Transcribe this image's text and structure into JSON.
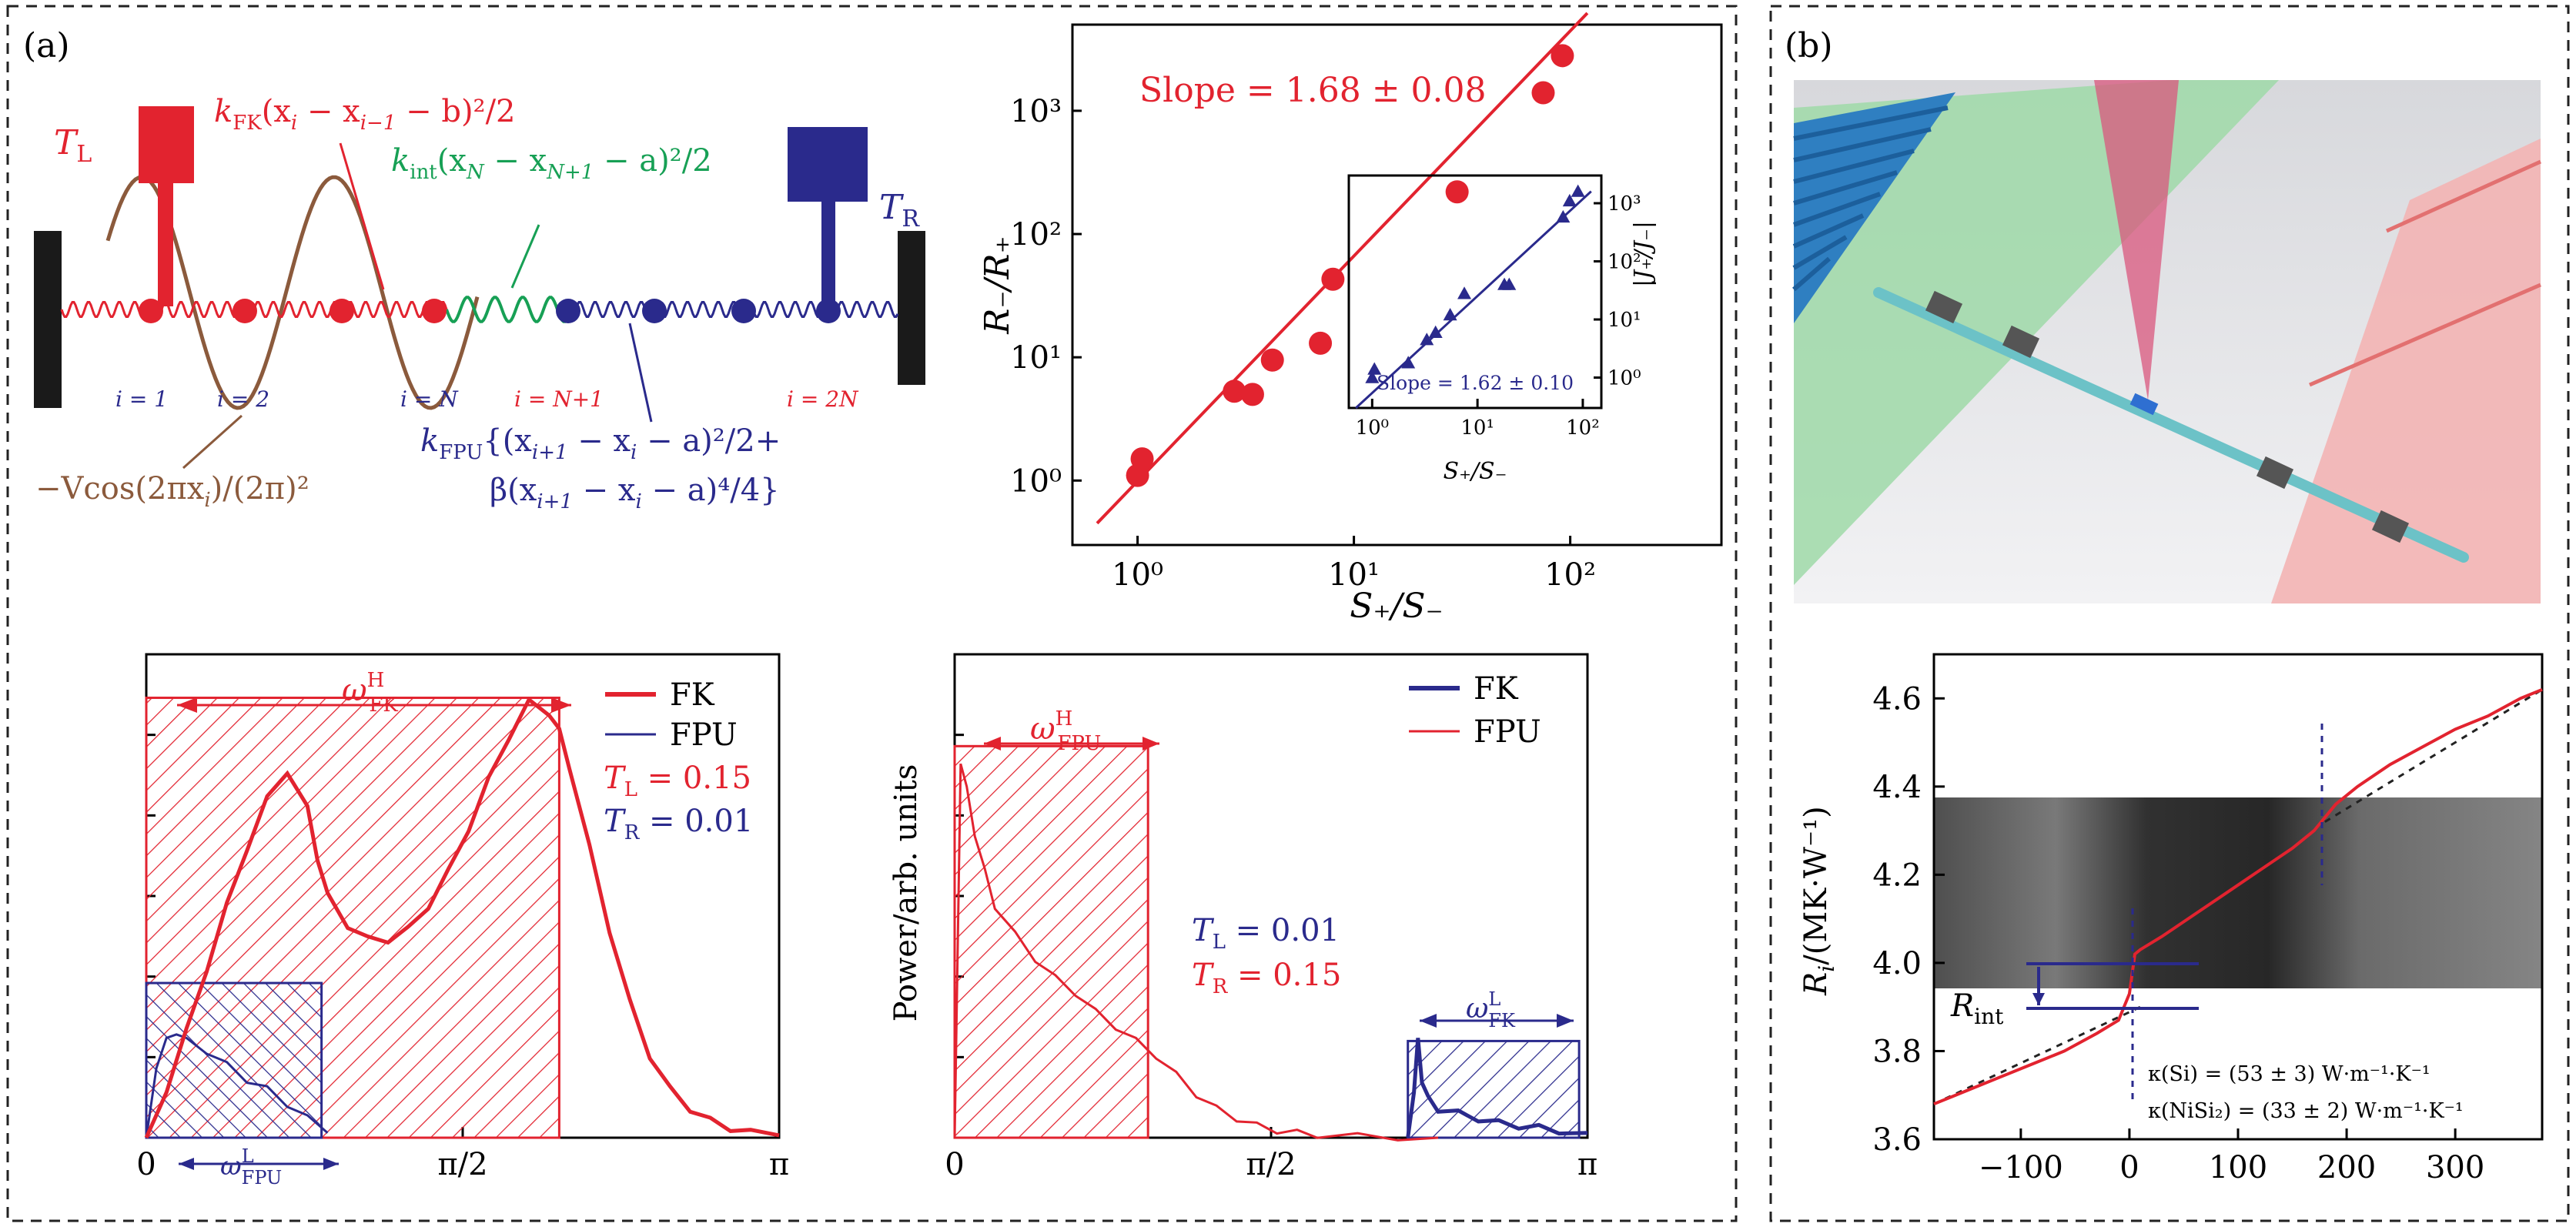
{
  "panels": {
    "a_label": "(a)",
    "b_label": "(b)"
  },
  "schematic": {
    "TL": "T",
    "TL_sub": "L",
    "TR": "T",
    "TR_sub": "R",
    "kFK": "k",
    "kFK_sub": "FK",
    "kFK_expr": "(x",
    "kFK_i": "i",
    "kFK_mid": " − x",
    "kFK_i1": "i−1",
    "kFK_tail": " − b)²/2",
    "kint": "k",
    "kint_sub": "int",
    "kint_expr": "(x",
    "kint_N": "N",
    "kint_mid": " − x",
    "kint_N1": "N+1",
    "kint_tail": " − a)²/2",
    "kFPU": "k",
    "kFPU_sub": "FPU",
    "kFPU_line1": "{(x",
    "kFPU_l1a": "i+1",
    "kFPU_l1b": " − x",
    "kFPU_l1c": "i",
    "kFPU_l1d": " − a)²/2+",
    "kFPU_line2": "β(x",
    "kFPU_l2a": "i+1",
    "kFPU_l2b": " − x",
    "kFPU_l2c": "i",
    "kFPU_l2d": " − a)⁴/4}",
    "potential": "−Vcos(2πx",
    "potential_i": "i",
    "potential_tail": ")/(2π)²",
    "site_labels": [
      "i = 1",
      "i = 2",
      "i = N",
      "i = N+1",
      "i = 2N"
    ]
  },
  "chart_data": [
    {
      "type": "scatter",
      "id": "rectification-main",
      "xlabel": "S₊/S₋",
      "ylabel": "R₋/R₊",
      "xscale": "log",
      "yscale": "log",
      "xlim": [
        0.5,
        500
      ],
      "ylim": [
        0.3,
        5000
      ],
      "xticks": [
        "10⁰",
        "10¹",
        "10²"
      ],
      "yticks": [
        "10⁰",
        "10¹",
        "10²",
        "10³"
      ],
      "annotation": "Slope = 1.68 ± 0.08",
      "points": {
        "x": [
          1.0,
          1.05,
          2.8,
          3.4,
          4.2,
          7.0,
          8.0,
          30,
          75,
          92
        ],
        "y": [
          1.1,
          1.5,
          5.3,
          5.0,
          9.5,
          13,
          43,
          220,
          1400,
          2800
        ]
      },
      "fit": {
        "x": [
          0.65,
          120
        ],
        "y": [
          0.45,
          6200
        ]
      },
      "color": "#e2232f"
    },
    {
      "type": "scatter",
      "id": "rectification-inset",
      "xlabel": "S₊/S₋",
      "ylabel": "|J₊/J₋|",
      "xscale": "log",
      "yscale": "log",
      "xlim": [
        0.6,
        150
      ],
      "ylim": [
        0.3,
        3000
      ],
      "xticks": [
        "10⁰",
        "10¹",
        "10²"
      ],
      "yticks": [
        "10⁰",
        "10¹",
        "10²",
        "10³"
      ],
      "annotation": "Slope = 1.62 ± 0.10",
      "points": {
        "x": [
          1.0,
          1.05,
          2.2,
          3.3,
          4.0,
          5.5,
          7.5,
          18,
          20,
          65,
          75,
          90
        ],
        "y": [
          1.0,
          1.4,
          1.8,
          4.5,
          6.0,
          12,
          28,
          40,
          40,
          580,
          1100,
          1600
        ]
      },
      "fit": {
        "x": [
          0.7,
          120
        ],
        "y": [
          0.3,
          1600
        ]
      },
      "color": "#2a2a8c"
    },
    {
      "type": "area",
      "id": "power-spectrum-1",
      "xticks": [
        "0",
        "π/2",
        "π"
      ],
      "legend": [
        "FK",
        "FPU"
      ],
      "band_high": "ω",
      "band_high_sup": "H",
      "band_high_sub": "FK",
      "band_low": "ω",
      "band_low_sup": "L",
      "band_low_sub": "FPU",
      "temp1": "T",
      "temp1_sub": "L",
      "temp1_val": " = 0.15",
      "temp2": "T",
      "temp2_sub": "R",
      "temp2_val": " = 0.01",
      "xlim": [
        0,
        3.1416
      ],
      "ylim": [
        0,
        1.0
      ],
      "series": [
        {
          "name": "FK",
          "color": "#e2232f",
          "x": [
            0,
            0.1,
            0.2,
            0.3,
            0.4,
            0.5,
            0.6,
            0.7,
            0.8,
            0.85,
            0.9,
            1.0,
            1.1,
            1.2,
            1.3,
            1.4,
            1.5,
            1.6,
            1.7,
            1.8,
            1.9,
            2.0,
            2.05,
            2.1,
            2.2,
            2.3,
            2.4,
            2.5,
            2.6,
            2.7,
            2.8,
            2.9,
            3.0,
            3.1416
          ],
          "y": [
            0,
            0.1,
            0.22,
            0.35,
            0.48,
            0.6,
            0.7,
            0.76,
            0.68,
            0.58,
            0.5,
            0.44,
            0.41,
            0.41,
            0.43,
            0.48,
            0.55,
            0.64,
            0.74,
            0.83,
            0.9,
            0.88,
            0.84,
            0.77,
            0.6,
            0.43,
            0.28,
            0.17,
            0.1,
            0.06,
            0.035,
            0.02,
            0.01,
            0.005
          ]
        },
        {
          "name": "FPU",
          "color": "#2a2a8c",
          "x": [
            0,
            0.05,
            0.1,
            0.15,
            0.2,
            0.3,
            0.4,
            0.5,
            0.6,
            0.7,
            0.8,
            0.9
          ],
          "y": [
            0,
            0.15,
            0.2,
            0.22,
            0.2,
            0.18,
            0.15,
            0.12,
            0.1,
            0.07,
            0.04,
            0.01
          ]
        }
      ],
      "bands": [
        {
          "color": "#e2232f",
          "x": [
            0,
            2.05
          ],
          "y": [
            0,
            0.91
          ]
        },
        {
          "color": "#2a2a8c",
          "x": [
            0,
            0.87
          ],
          "y": [
            0,
            0.32
          ]
        }
      ]
    },
    {
      "type": "area",
      "id": "power-spectrum-2",
      "xticks": [
        "0",
        "π/2",
        "π"
      ],
      "ylabel": "Power/arb. units",
      "legend": [
        "FK",
        "FPU"
      ],
      "band_high": "ω",
      "band_high_sup": "H",
      "band_high_sub": "FPU",
      "band_low": "ω",
      "band_low_sup": "L",
      "band_low_sub": "FK",
      "temp1": "T",
      "temp1_sub": "L",
      "temp1_val": " = 0.01",
      "temp2": "T",
      "temp2_sub": "R",
      "temp2_val": " = 0.15",
      "xlim": [
        0,
        3.1416
      ],
      "ylim": [
        0,
        1.0
      ],
      "series": [
        {
          "name": "FPU",
          "color": "#e2232f",
          "x": [
            0,
            0.03,
            0.06,
            0.1,
            0.15,
            0.2,
            0.3,
            0.4,
            0.5,
            0.6,
            0.7,
            0.8,
            0.9,
            1.0,
            1.1,
            1.2,
            1.3,
            1.4,
            1.5,
            1.6,
            1.7,
            1.8,
            2.0,
            2.2,
            2.4
          ],
          "y": [
            0,
            0.78,
            0.72,
            0.63,
            0.55,
            0.48,
            0.42,
            0.37,
            0.33,
            0.3,
            0.26,
            0.23,
            0.2,
            0.17,
            0.13,
            0.09,
            0.06,
            0.04,
            0.025,
            0.015,
            0.01,
            0.006,
            0.003,
            0.001,
            0
          ]
        },
        {
          "name": "FK",
          "color": "#2a2a8c",
          "x": [
            2.25,
            2.28,
            2.3,
            2.32,
            2.35,
            2.4,
            2.5,
            2.6,
            2.7,
            2.8,
            2.9,
            3.0,
            3.1416
          ],
          "y": [
            0,
            0.1,
            0.2,
            0.12,
            0.08,
            0.06,
            0.05,
            0.04,
            0.03,
            0.025,
            0.02,
            0.015,
            0.01
          ]
        }
      ],
      "bands": [
        {
          "color": "#e2232f",
          "x": [
            0,
            0.96
          ],
          "y": [
            0,
            0.81
          ]
        },
        {
          "color": "#2a2a8c",
          "x": [
            2.25,
            3.1
          ],
          "y": [
            0,
            0.2
          ]
        }
      ]
    },
    {
      "type": "line",
      "id": "resistance-profile",
      "ylabel": "R",
      "ylabel_sub": "i",
      "ylabel_unit": "/(MK·W⁻¹)",
      "xticks": [
        "−100",
        "0",
        "100",
        "200",
        "300"
      ],
      "xtick_values": [
        -100,
        0,
        100,
        200,
        300
      ],
      "yticks": [
        "3.6",
        "3.8",
        "4.0",
        "4.2",
        "4.4",
        "4.6"
      ],
      "ytick_values": [
        3.6,
        3.8,
        4.0,
        4.2,
        4.4,
        4.6
      ],
      "xlim": [
        -180,
        380
      ],
      "ylim": [
        3.6,
        4.7
      ],
      "annotation": "R",
      "annotation_sub": "int",
      "legend_text1": "κ(Si) = (53 ± 3) W·m⁻¹·K⁻¹",
      "legend_text2": "κ(NiSi₂) = (33 ± 2) W·m⁻¹·K⁻¹",
      "series": [
        {
          "name": "",
          "color": "#e2232f",
          "x": [
            -180,
            -150,
            -120,
            -90,
            -60,
            -30,
            -10,
            0,
            5,
            10,
            30,
            60,
            90,
            120,
            150,
            170,
            180,
            190,
            210,
            240,
            270,
            300,
            330,
            360,
            380
          ],
          "y": [
            3.68,
            3.71,
            3.74,
            3.77,
            3.8,
            3.84,
            3.87,
            3.93,
            4.02,
            4.03,
            4.06,
            4.11,
            4.16,
            4.21,
            4.26,
            4.3,
            4.33,
            4.36,
            4.4,
            4.45,
            4.49,
            4.53,
            4.56,
            4.6,
            4.62
          ]
        }
      ]
    }
  ]
}
